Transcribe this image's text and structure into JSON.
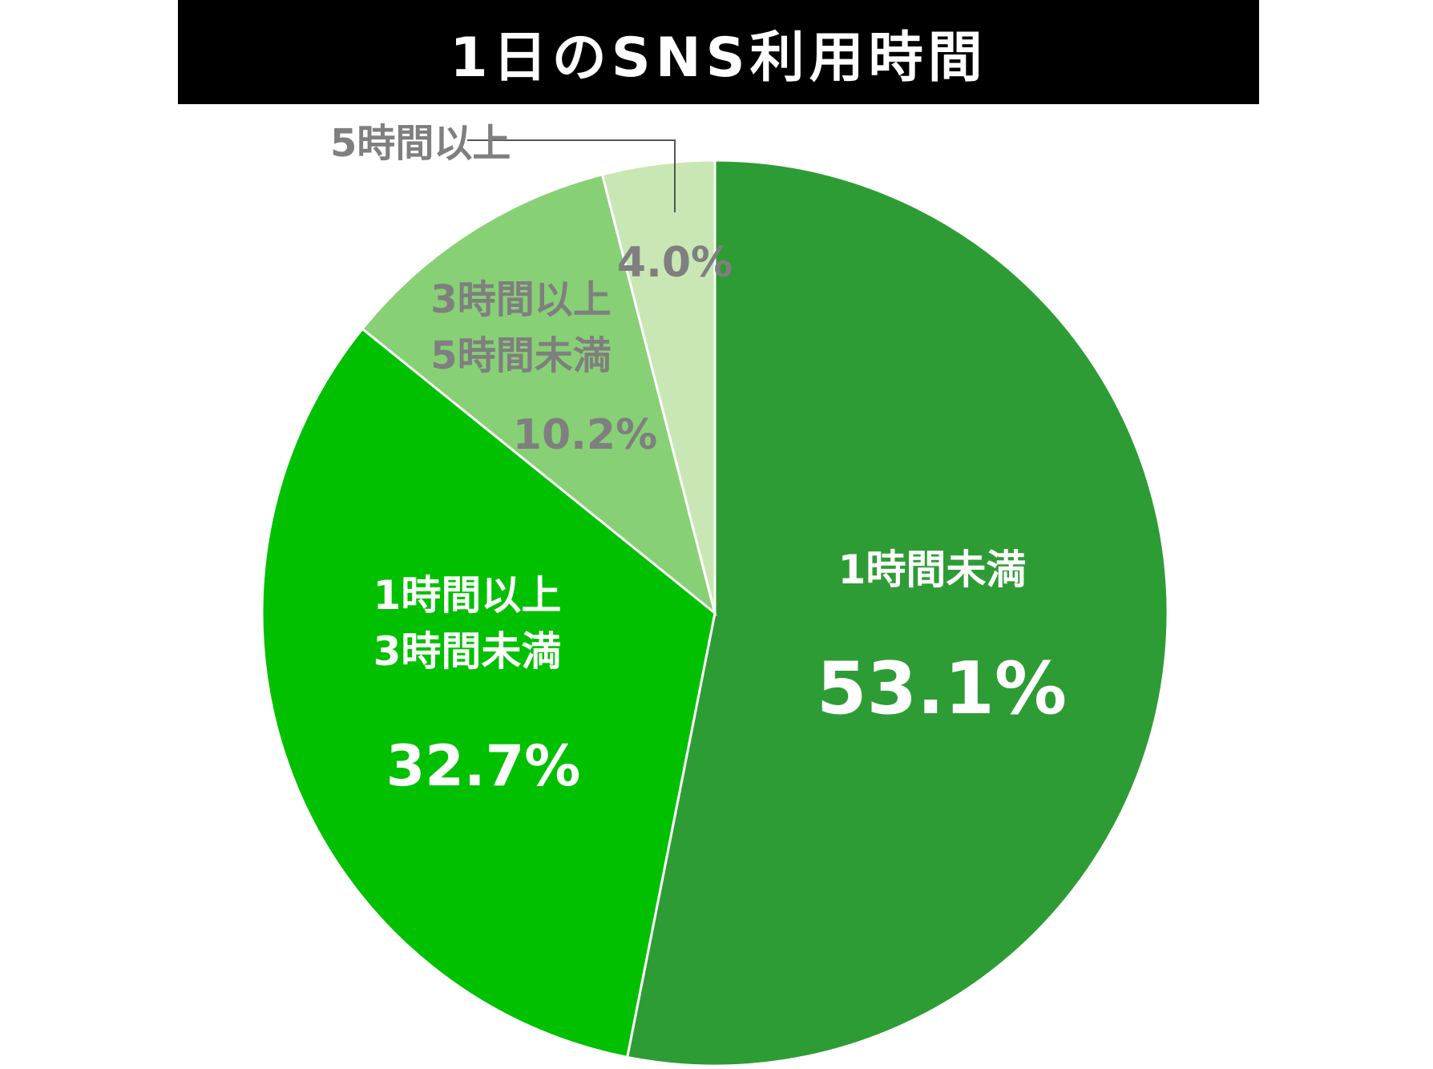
{
  "chart_data": {
    "type": "pie",
    "title": "1日のSNS利用時間",
    "slices": [
      {
        "label_lines": [
          "1時間未満"
        ],
        "value": 53.1,
        "value_text": "53.1%",
        "color": "#2e9c35",
        "text_color": "#ffffff"
      },
      {
        "label_lines": [
          "1時間以上",
          "3時間未満"
        ],
        "value": 32.7,
        "value_text": "32.7%",
        "color": "#00c000",
        "text_color": "#ffffff"
      },
      {
        "label_lines": [
          "3時間以上",
          "5時間未満"
        ],
        "value": 10.2,
        "value_text": "10.2%",
        "color": "#88d075",
        "text_color": "#7f7f7f"
      },
      {
        "label_lines": [
          "5時間以上"
        ],
        "value": 4.0,
        "value_text": "4.0%",
        "color": "#c9e7b5",
        "text_color": "#7f7f7f"
      }
    ]
  }
}
